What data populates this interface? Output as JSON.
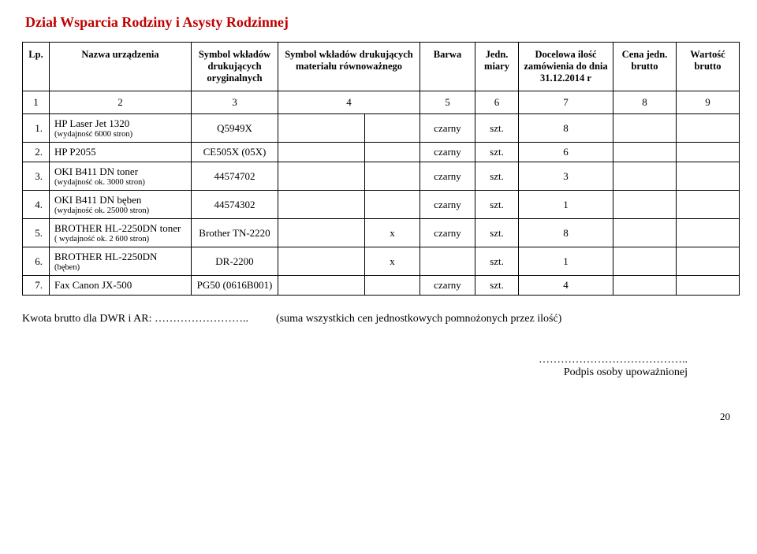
{
  "title": "Dział Wsparcia Rodziny i Asysty Rodzinnej",
  "headers": {
    "lp": "Lp.",
    "name": "Nazwa urządzenia",
    "sym1": "Symbol wkładów drukujących oryginalnych",
    "sym2": "Symbol wkładów drukujących materiału równoważnego",
    "color": "Barwa",
    "unit": "Jedn. miary",
    "qty": "Docelowa ilość zamówienia do dnia 31.12.2014 r",
    "price": "Cena jedn. brutto",
    "value": "Wartość brutto"
  },
  "numrow": {
    "c1": "1",
    "c2": "2",
    "c3": "3",
    "c4": "4",
    "c5": "5",
    "c6": "6",
    "c7": "7",
    "c8": "8",
    "c9": "9"
  },
  "rows": [
    {
      "lp": "1.",
      "name_main": "HP Laser Jet 1320",
      "name_sub": "(wydajność 6000 stron)",
      "sym1": "Q5949X",
      "sym2": "",
      "eq": "",
      "color": "czarny",
      "unit": "szt.",
      "qty": "8",
      "price": "",
      "value": ""
    },
    {
      "lp": "2.",
      "name_main": "HP P2055",
      "name_sub": "",
      "sym1": "CE505X (05X)",
      "sym2": "",
      "eq": "",
      "color": "czarny",
      "unit": "szt.",
      "qty": "6",
      "price": "",
      "value": ""
    },
    {
      "lp": "3.",
      "name_main": "OKI B411 DN toner",
      "name_sub": "(wydajność ok. 3000 stron)",
      "sym1": "44574702",
      "sym2": "",
      "eq": "",
      "color": "czarny",
      "unit": "szt.",
      "qty": "3",
      "price": "",
      "value": ""
    },
    {
      "lp": "4.",
      "name_main": "OKI B411 DN bęben",
      "name_sub": "(wydajność ok. 25000 stron)",
      "sym1": "44574302",
      "sym2": "",
      "eq": "",
      "color": "czarny",
      "unit": "szt.",
      "qty": "1",
      "price": "",
      "value": ""
    },
    {
      "lp": "5.",
      "name_main": "BROTHER HL-2250DN toner",
      "name_sub": "( wydajność ok. 2 600 stron)",
      "sym1": "Brother TN-2220",
      "sym2": "",
      "eq": "x",
      "color": "czarny",
      "unit": "szt.",
      "qty": "8",
      "price": "",
      "value": ""
    },
    {
      "lp": "6.",
      "name_main": "BROTHER HL-2250DN",
      "name_sub": "(bęben)",
      "sym1": "DR-2200",
      "sym2": "",
      "eq": "x",
      "color": "",
      "unit": "szt.",
      "qty": "1",
      "price": "",
      "value": ""
    },
    {
      "lp": "7.",
      "name_main": "Fax Canon JX-500",
      "name_sub": "",
      "sym1": "PG50 (0616B001)",
      "sym2": "",
      "eq": "",
      "color": "czarny",
      "unit": "szt.",
      "qty": "4",
      "price": "",
      "value": ""
    }
  ],
  "footer": {
    "left": "Kwota brutto dla DWR i AR: ……………………..",
    "right": "(suma wszystkich cen jednostkowych pomnożonych przez ilość)"
  },
  "signature": {
    "dots": "…………………………………..",
    "label": "Podpis osoby upoważnionej"
  },
  "page_number": "20",
  "style": {
    "title_color": "#c00000",
    "border_color": "#000000",
    "font_family": "Times New Roman",
    "text_color": "#000000",
    "background": "#ffffff"
  }
}
